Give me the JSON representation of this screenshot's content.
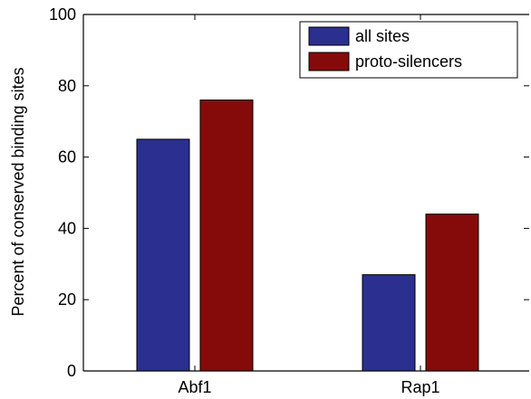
{
  "chart_data": {
    "type": "bar",
    "categories": [
      "Abf1",
      "Rap1"
    ],
    "series": [
      {
        "name": "all sites",
        "color": "#2b2f8f",
        "values": [
          65,
          27
        ]
      },
      {
        "name": "proto-silencers",
        "color": "#850b0b",
        "values": [
          76,
          44
        ]
      }
    ],
    "ylabel": "Percent of conserved binding sites",
    "xlabel": "",
    "ylim": [
      0,
      100
    ],
    "yticks": [
      0,
      20,
      40,
      60,
      80,
      100
    ],
    "grid": false,
    "legend_position": "top-right"
  }
}
